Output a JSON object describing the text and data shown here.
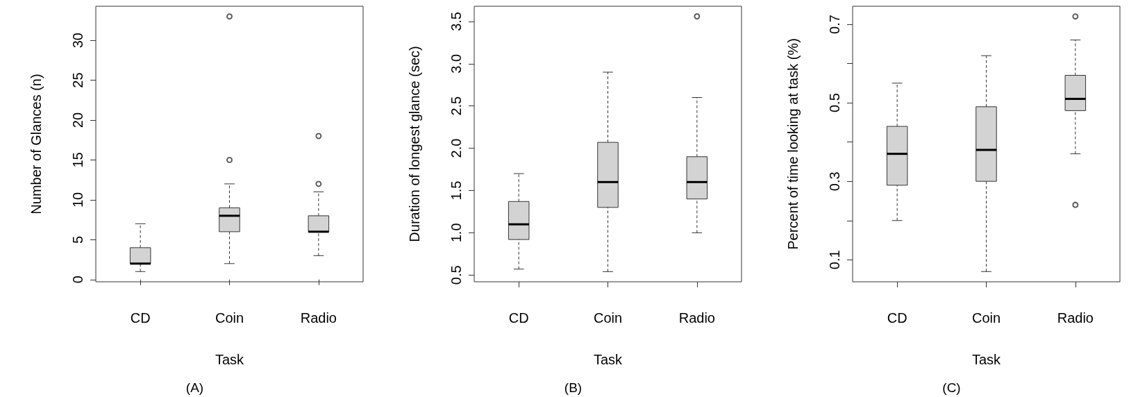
{
  "chart_data": [
    {
      "type": "box",
      "categories": [
        "CD",
        "Coin",
        "Radio"
      ],
      "xlabel": "Task",
      "ylabel": "Number of Glances (n)",
      "annotations": [
        "(A)"
      ],
      "ylim": [
        -0.28,
        34.28
      ],
      "yticks": [
        0,
        5,
        10,
        15,
        20,
        25,
        30
      ],
      "series": [
        {
          "color": "#d3d3d3",
          "boxes": [
            {
              "low": 1,
              "q1": 2,
              "median": 2,
              "q3": 4,
              "high": 7
            },
            {
              "low": 2,
              "q1": 6,
              "median": 8,
              "q3": 9,
              "high": 12,
              "outliers": [
                15,
                33
              ]
            },
            {
              "low": 3,
              "q1": 6,
              "median": 6,
              "q3": 8,
              "high": 11,
              "outliers": [
                12,
                18
              ]
            }
          ]
        }
      ]
    },
    {
      "type": "box",
      "categories": [
        "CD",
        "Coin",
        "Radio"
      ],
      "xlabel": "Task",
      "ylabel": "Duration of longest glance (sec)",
      "annotations": [
        "(B)"
      ],
      "ylim": [
        0.42,
        3.68
      ],
      "yticks": [
        0.5,
        {
          "value": 1,
          "label": "1.0"
        },
        1.5,
        {
          "value": 2,
          "label": "2.0"
        },
        2.5,
        {
          "value": 3,
          "label": "3.0"
        },
        3.5
      ],
      "series": [
        {
          "color": "#d3d3d3",
          "boxes": [
            {
              "low": 0.57,
              "q1": 0.92,
              "median": 1.1,
              "q3": 1.37,
              "high": 1.7
            },
            {
              "low": 0.54,
              "q1": 1.3,
              "median": 1.6,
              "q3": 2.07,
              "high": 2.9
            },
            {
              "low": 1,
              "q1": 1.4,
              "median": 1.6,
              "q3": 1.9,
              "high": 2.6,
              "outliers": [
                3.56
              ]
            }
          ]
        }
      ]
    },
    {
      "type": "box",
      "categories": [
        "CD",
        "Coin",
        "Radio"
      ],
      "xlabel": "Task",
      "ylabel": "Percent of time looking at task (%)",
      "annotations": [
        "(C)"
      ],
      "ylim": [
        0.044,
        0.746
      ],
      "yticks": [
        0.1,
        {
          "value": 0.2,
          "label": null
        },
        0.3,
        {
          "value": 0.4,
          "label": null
        },
        0.5,
        {
          "value": 0.6,
          "label": null
        },
        0.7
      ],
      "series": [
        {
          "color": "#d3d3d3",
          "boxes": [
            {
              "low": 0.2,
              "q1": 0.29,
              "median": 0.37,
              "q3": 0.44,
              "high": 0.55
            },
            {
              "low": 0.07,
              "q1": 0.3,
              "median": 0.38,
              "q3": 0.49,
              "high": 0.62
            },
            {
              "low": 0.37,
              "q1": 0.48,
              "median": 0.51,
              "q3": 0.57,
              "high": 0.66,
              "outliers": [
                0.24,
                0.72
              ]
            }
          ]
        }
      ]
    }
  ]
}
